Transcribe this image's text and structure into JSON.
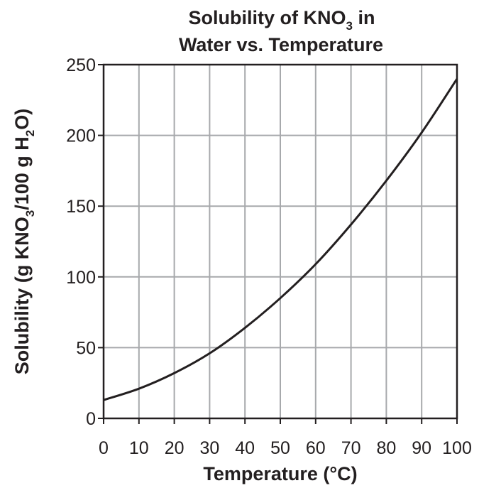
{
  "chart_data": {
    "type": "line",
    "title": {
      "line1_before_sub": "Solubility of KNO",
      "line1_sub": "3",
      "line1_after_sub": " in",
      "line2": "Water vs. Temperature"
    },
    "xlabel": "Temperature (°C)",
    "ylabel": {
      "part1": "Solubility (g KNO",
      "sub1": "3",
      "part2": "/100 g H",
      "sub2": "2",
      "part3": "O)"
    },
    "xlim": [
      0,
      100
    ],
    "ylim": [
      0,
      250
    ],
    "x_ticks": [
      0,
      10,
      20,
      30,
      40,
      50,
      60,
      70,
      80,
      90,
      100
    ],
    "y_ticks": [
      0,
      50,
      100,
      150,
      200,
      250
    ],
    "x_tick_labels": [
      "0",
      "10",
      "20",
      "30",
      "40",
      "50",
      "60",
      "70",
      "80",
      "90",
      "100"
    ],
    "y_tick_labels": [
      "0",
      "50",
      "100",
      "150",
      "200",
      "250"
    ],
    "grid": true,
    "series": [
      {
        "x": [
          0,
          10,
          20,
          30,
          40,
          50,
          60,
          70,
          80,
          90,
          100
        ],
        "y": [
          13,
          21,
          32,
          46,
          64,
          85,
          109,
          137,
          168,
          202,
          240
        ]
      }
    ],
    "colors": {
      "line": "#231f20",
      "grid": "#a7a9ac",
      "text": "#231f20"
    }
  }
}
